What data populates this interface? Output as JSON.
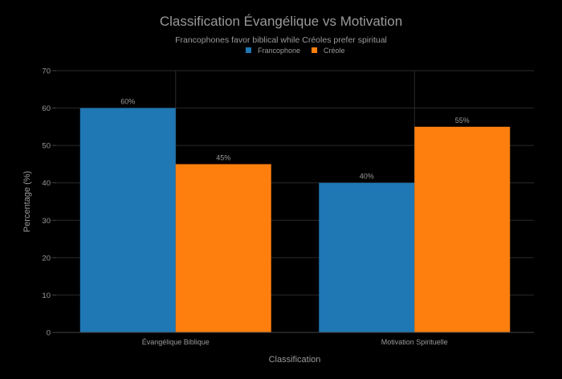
{
  "chart_data": {
    "type": "bar",
    "title": "Classification Évangélique vs Motivation",
    "subtitle": "Francophones favor biblical while Créoles prefer spiritual",
    "xlabel": "Classification",
    "ylabel": "Percentage (%)",
    "categories": [
      "Évangélique Biblique",
      "Motivation Spirituelle"
    ],
    "series": [
      {
        "name": "Francophone",
        "color": "#1f77b4",
        "values": [
          60,
          40
        ],
        "labels": [
          "60%",
          "40%"
        ]
      },
      {
        "name": "Créole",
        "color": "#ff7f0e",
        "values": [
          45,
          55
        ],
        "labels": [
          "45%",
          "55%"
        ]
      }
    ],
    "ylim": [
      0,
      70
    ],
    "yticks": [
      "0",
      "10",
      "20",
      "30",
      "40",
      "50",
      "60",
      "70"
    ],
    "grid": true,
    "legend_position": "top-center"
  }
}
